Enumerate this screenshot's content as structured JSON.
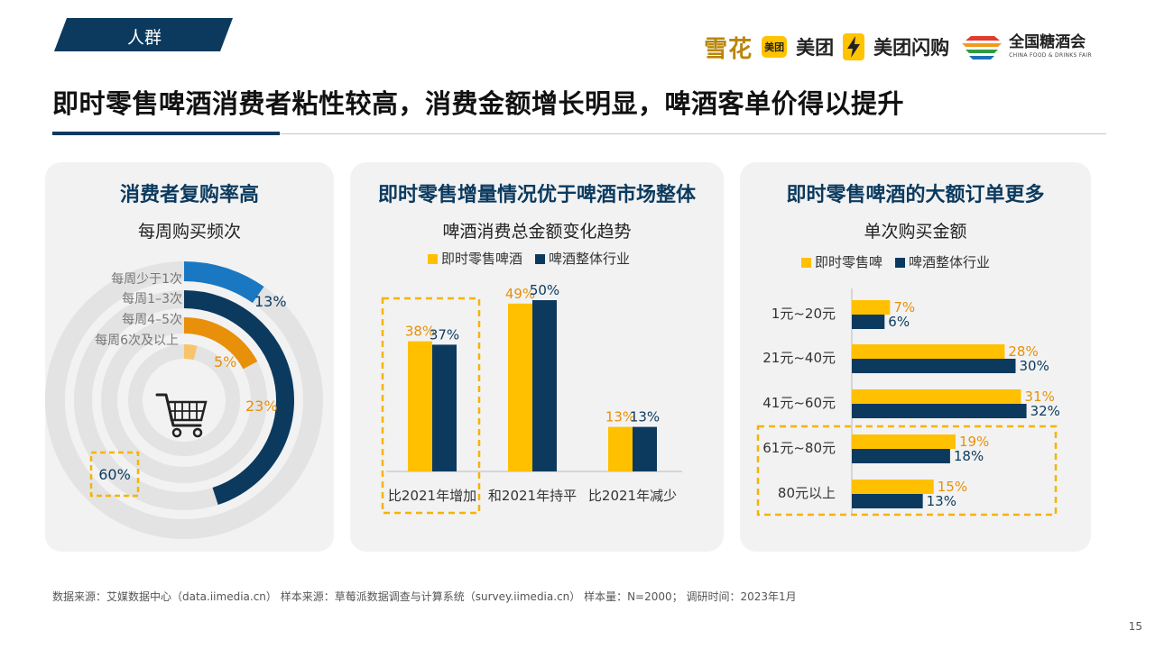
{
  "header": {
    "tag": "人群",
    "logos": {
      "xuehua": "雪花",
      "meituan_box": "美团",
      "meituan": "美团",
      "shangou": "美团闪购",
      "tangjiu": "全国糖酒会",
      "tangjiu_en": "CHINA FOOD & DRINKS FAIR"
    }
  },
  "title": "即时零售啤酒消费者粘性较高，消费金额增长明显，啤酒客单价得以提升",
  "colors": {
    "navy": "#0b3a5e",
    "yellow": "#ffc000",
    "orange": "#e8900a",
    "blue": "#1a78c2",
    "light_orange": "#f7c46c",
    "dashed": "#f5b400"
  },
  "panel1": {
    "title": "消费者复购率高",
    "subtitle": "每周购买频次",
    "icon": "shopping-cart-icon",
    "chart_data": {
      "type": "radial-bar",
      "series": [
        {
          "label": "每周少于1次",
          "value": 13,
          "display": "13%",
          "color": "#1a78c2"
        },
        {
          "label": "每周1–3次",
          "value": 60,
          "display": "60%",
          "color": "#0b3a5e"
        },
        {
          "label": "每周4–5次",
          "value": 23,
          "display": "23%",
          "color": "#e8900a"
        },
        {
          "label": "每周6次及以上",
          "value": 5,
          "display": "5%",
          "color": "#f7c46c"
        }
      ]
    }
  },
  "panel2": {
    "title": "即时零售增量情况优于啤酒市场整体",
    "subtitle": "啤酒消费总金额变化趋势",
    "chart_data": {
      "type": "bar",
      "categories": [
        "比2021年增加",
        "和2021年持平",
        "比2021年减少"
      ],
      "series": [
        {
          "name": "即时零售啤酒",
          "values": [
            38,
            49,
            13
          ],
          "labels": [
            "38%",
            "49%",
            "13%"
          ],
          "color": "#ffc000"
        },
        {
          "name": "啤酒整体行业",
          "values": [
            37,
            50,
            13
          ],
          "labels": [
            "37%",
            "50%",
            "13%"
          ],
          "color": "#0b3a5e"
        }
      ],
      "highlight_category": 0
    }
  },
  "panel3": {
    "title": "即时零售啤酒的大额订单更多",
    "subtitle": "单次购买金额",
    "chart_data": {
      "type": "bar-horizontal",
      "categories": [
        "1元~20元",
        "21元~40元",
        "41元~60元",
        "61元~80元",
        "80元以上"
      ],
      "series": [
        {
          "name": "即时零售啤",
          "values": [
            7,
            28,
            31,
            19,
            15
          ],
          "labels": [
            "7%",
            "28%",
            "31%",
            "19%",
            "15%"
          ],
          "color": "#ffc000"
        },
        {
          "name": "啤酒整体行业",
          "values": [
            6,
            30,
            32,
            18,
            13
          ],
          "labels": [
            "6%",
            "30%",
            "32%",
            "18%",
            "13%"
          ],
          "color": "#0b3a5e"
        }
      ],
      "highlight_categories": [
        3,
        4
      ]
    }
  },
  "footer": {
    "source": "数据来源：艾媒数据中心（data.iimedia.cn）  样本来源：草莓派数据调查与计算系统（survey.iimedia.cn）  样本量：N=2000；  调研时间：2023年1月",
    "page": "15"
  }
}
